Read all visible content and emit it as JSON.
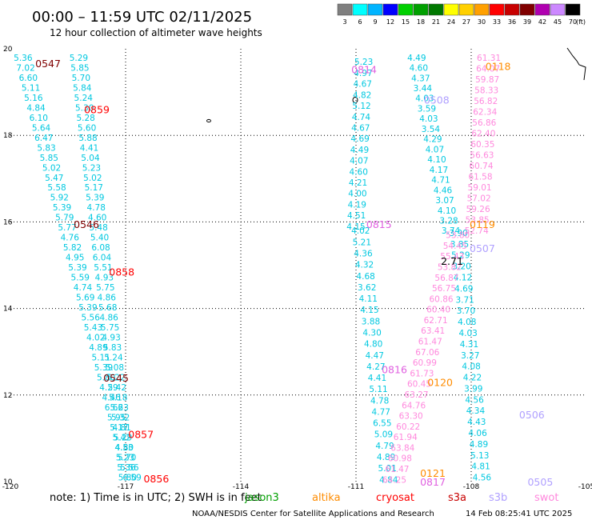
{
  "header": {
    "title": "00:00 – 11:59 UTC 02/11/2025",
    "subtitle": "12 hour collection of altimeter wave heights"
  },
  "legend": {
    "unit": "(ft)",
    "bins": [
      {
        "label": "3",
        "color": "#7f7f7f"
      },
      {
        "label": "6",
        "color": "#00ffff"
      },
      {
        "label": "9",
        "color": "#00b4ff"
      },
      {
        "label": "12",
        "color": "#0000ff"
      },
      {
        "label": "15",
        "color": "#00d000"
      },
      {
        "label": "18",
        "color": "#00a000"
      },
      {
        "label": "21",
        "color": "#007800"
      },
      {
        "label": "24",
        "color": "#ffff00"
      },
      {
        "label": "27",
        "color": "#ffd000"
      },
      {
        "label": "30",
        "color": "#ffa000"
      },
      {
        "label": "33",
        "color": "#ff0000"
      },
      {
        "label": "36",
        "color": "#c80000"
      },
      {
        "label": "39",
        "color": "#800000"
      },
      {
        "label": "42",
        "color": "#b000b0"
      },
      {
        "label": "45",
        "color": "#cc88ff"
      },
      {
        "label": "70",
        "color": "#000000"
      }
    ]
  },
  "footer": {
    "note": "note:  1) Time is in UTC; 2) SWH is in feet",
    "credit": "NOAA/NESDIS Center for Satellite Applications and Research",
    "timestamp": "14 Feb 08:25:41 UTC 2025",
    "satellites": [
      {
        "name": "jason3",
        "color": "#00a000"
      },
      {
        "name": "altika",
        "color": "#ff8c00"
      },
      {
        "name": "cryosat",
        "color": "#ff0000"
      },
      {
        "name": "s3a",
        "color": "#c80000"
      },
      {
        "name": "s3b",
        "color": "#b0a0ff"
      },
      {
        "name": "swot",
        "color": "#ff88dd"
      }
    ]
  },
  "chart_data": {
    "type": "scatter",
    "xlim": [
      -120,
      -105
    ],
    "ylim": [
      10,
      20
    ],
    "x_ticks": [
      "-120",
      "-117",
      "-114",
      "-111",
      "-108",
      "-105"
    ],
    "y_ticks": [
      "10",
      "12",
      "14",
      "16",
      "18",
      "20"
    ],
    "colors": {
      "cyan": "#00c8e0",
      "pink": "#ff88dd",
      "red": "#ff0000",
      "darkred": "#800000",
      "orange": "#ff8c00",
      "lavender": "#b0a0ff",
      "magenta": "#e060e0",
      "black": "#000000"
    },
    "tracks": [
      {
        "name": "track-a",
        "color": "cyan",
        "x_start": -119.67,
        "x_end": -116.83,
        "y_start": 19.8,
        "y_end": 10.1,
        "values": [
          "5.36",
          "7.02",
          "6.60",
          "5.11",
          "5.16",
          "4.84",
          "6.10",
          "5.64",
          "6.47",
          "5.83",
          "5.85",
          "5.02",
          "5.47",
          "5.58",
          "5.92",
          "5.39",
          "5.79",
          "5.77",
          "4.76",
          "5.82",
          "4.95",
          "5.39",
          "5.59",
          "4.74",
          "5.69",
          "5.39",
          "5.56",
          "5.43",
          "4.02",
          "4.89",
          "5.11",
          "5.39",
          "5.80",
          "4.29",
          "4.46",
          "6.66",
          "5.95",
          "5.17",
          "5.42",
          "4.80",
          "5.70",
          "5.56",
          "6.59"
        ]
      },
      {
        "name": "track-b",
        "color": "cyan",
        "x_start": -118.22,
        "x_end": -116.95,
        "y_start": 19.8,
        "y_end": 10.1,
        "values": [
          "5.29",
          "5.85",
          "5.70",
          "5.84",
          "5.24",
          "5.30",
          "5.28",
          "5.60",
          "5.88",
          "4.41",
          "5.04",
          "5.23",
          "5.02",
          "5.17",
          "5.39",
          "4.78",
          "4.60",
          "5.48",
          "5.40",
          "6.08",
          "6.04",
          "5.51",
          "4.93",
          "5.75",
          "4.86",
          "5.68",
          "4.86",
          "5.75",
          "4.93",
          "5.83",
          "5.24",
          "5.08",
          "5.22",
          "5.42",
          "5.18",
          "5.23",
          "5.32",
          "4.81",
          "5.29",
          "4.53",
          "5.23",
          "5.36",
          "5.80"
        ]
      },
      {
        "name": "track-c",
        "color": "cyan",
        "x_start": -110.8,
        "x_end": -111.0,
        "y_start": 19.7,
        "y_end": 15.9,
        "values": [
          "5.23",
          "4.97",
          "4.67",
          "4.82",
          "5.12",
          "4.74",
          "4.67",
          "4.69",
          "4.49",
          "4.07",
          "4.60",
          "4.21",
          "4.00",
          "4.19",
          "4.51",
          "4.15"
        ]
      },
      {
        "name": "track-d",
        "color": "cyan",
        "x_start": -110.88,
        "x_end": -110.15,
        "y_start": 15.8,
        "y_end": 10.05,
        "values": [
          "4.02",
          "5.21",
          "4.36",
          "4.32",
          "4.68",
          "3.62",
          "4.11",
          "4.15",
          "3.88",
          "4.30",
          "4.80",
          "4.47",
          "4.27",
          "4.41",
          "5.11",
          "4.78",
          "4.77",
          "6.55",
          "5.09",
          "4.79",
          "4.89",
          "5.01",
          "4.84"
        ]
      },
      {
        "name": "track-e",
        "color": "cyan",
        "x_start": -109.42,
        "x_end": -108.53,
        "y_start": 19.8,
        "y_end": 15.8,
        "values": [
          "4.49",
          "4.60",
          "4.37",
          "3.44",
          "4.03",
          "3.59",
          "4.03",
          "3.54",
          "4.29",
          "4.07",
          "4.10",
          "4.17",
          "4.71",
          "4.46",
          "3.07",
          "4.10",
          "3.28",
          "3.74"
        ]
      },
      {
        "name": "track-f",
        "color": "cyan",
        "x_start": -108.33,
        "x_end": -107.72,
        "y_start": 15.75,
        "y_end": 10.1,
        "values": [
          "3.90",
          "3.85",
          "5.29",
          "3.20",
          "4.12",
          "4.69",
          "3.71",
          "3.70",
          "4.08",
          "4.03",
          "4.31",
          "3.27",
          "4.08",
          "4.22",
          "3.99",
          "4.56",
          "4.34",
          "4.43",
          "4.06",
          "4.89",
          "5.13",
          "4.81",
          "4.56"
        ]
      },
      {
        "name": "track-g",
        "color": "pink",
        "x_start": -107.54,
        "x_end": -107.86,
        "y_start": 19.8,
        "y_end": 15.8,
        "values": [
          "61.31",
          "64.07",
          "59.87",
          "58.33",
          "56.82",
          "62.34",
          "56.86",
          "62.40",
          "60.35",
          "56.63",
          "60.74",
          "61.58",
          "59.01",
          "57.02",
          "59.26",
          "53.85",
          "52.74"
        ]
      },
      {
        "name": "track-h",
        "color": "pink",
        "x_start": -108.35,
        "x_end": -110.0,
        "y_start": 15.7,
        "y_end": 10.05,
        "values": [
          "53.80",
          "54.45",
          "55.43",
          "53.82",
          "56.87",
          "56.75",
          "60.86",
          "60.40",
          "62.71",
          "63.41",
          "61.47",
          "67.06",
          "60.99",
          "61.73",
          "60.45",
          "63.27",
          "64.76",
          "63.30",
          "60.22",
          "61.94",
          "63.84",
          "60.98",
          "61.47",
          "64.25"
        ]
      }
    ],
    "labels": [
      {
        "text": "0547",
        "x": -119.02,
        "y": 19.67,
        "color": "darkred"
      },
      {
        "text": "0859",
        "x": -117.75,
        "y": 18.6,
        "color": "red"
      },
      {
        "text": "0546",
        "x": -118.02,
        "y": 15.95,
        "color": "darkred"
      },
      {
        "text": "0858",
        "x": -117.1,
        "y": 14.85,
        "color": "red"
      },
      {
        "text": "0545",
        "x": -117.25,
        "y": 12.4,
        "color": "darkred"
      },
      {
        "text": "0857",
        "x": -116.6,
        "y": 11.1,
        "color": "red"
      },
      {
        "text": "0856",
        "x": -116.2,
        "y": 10.07,
        "color": "red"
      },
      {
        "text": "0814",
        "x": -110.79,
        "y": 19.53,
        "color": "magenta"
      },
      {
        "text": "0815",
        "x": -110.4,
        "y": 15.95,
        "color": "magenta"
      },
      {
        "text": "0816",
        "x": -110.0,
        "y": 12.6,
        "color": "magenta"
      },
      {
        "text": "0817",
        "x": -109.0,
        "y": 10.0,
        "color": "magenta"
      },
      {
        "text": "0118",
        "x": -107.3,
        "y": 19.6,
        "color": "orange"
      },
      {
        "text": "0119",
        "x": -107.71,
        "y": 15.95,
        "color": "orange"
      },
      {
        "text": "0120",
        "x": -108.81,
        "y": 12.3,
        "color": "orange"
      },
      {
        "text": "0121",
        "x": -109.0,
        "y": 10.2,
        "color": "orange"
      },
      {
        "text": "0508",
        "x": -108.9,
        "y": 18.83,
        "color": "lavender"
      },
      {
        "text": "0507",
        "x": -107.71,
        "y": 15.4,
        "color": "lavender"
      },
      {
        "text": "0506",
        "x": -106.42,
        "y": 11.55,
        "color": "lavender"
      },
      {
        "text": "0505",
        "x": -106.2,
        "y": 10.0,
        "color": "lavender"
      },
      {
        "text": "2.71",
        "x": -108.5,
        "y": 15.1,
        "color": "black"
      }
    ]
  }
}
